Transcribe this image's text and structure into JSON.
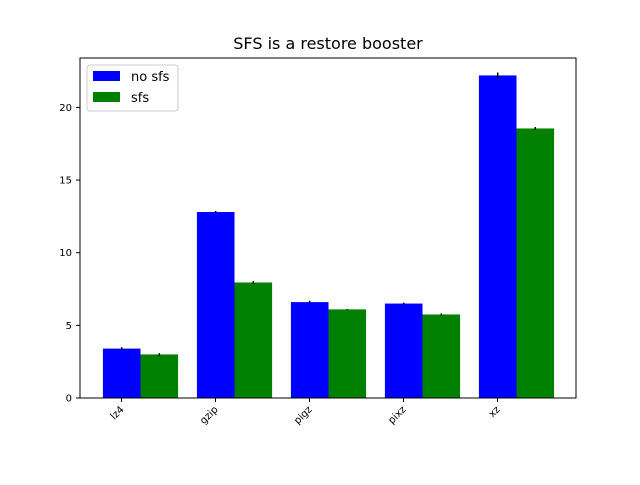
{
  "chart_data": {
    "type": "bar",
    "title": "SFS is a restore booster",
    "xlabel": "",
    "ylabel": "",
    "categories": [
      "lz4",
      "gzip",
      "pigz",
      "pixz",
      "xz"
    ],
    "series": [
      {
        "name": "no sfs",
        "color": "#0000ff",
        "values": [
          3.4,
          12.8,
          6.6,
          6.5,
          22.2
        ],
        "errors": [
          0.1,
          0.07,
          0.1,
          0.07,
          0.2
        ]
      },
      {
        "name": "sfs",
        "color": "#008000",
        "values": [
          3.0,
          7.95,
          6.1,
          5.75,
          18.55
        ],
        "errors": [
          0.08,
          0.1,
          0.03,
          0.07,
          0.1
        ]
      }
    ],
    "ylim": [
      0,
      23.4
    ],
    "yticks": [
      0,
      5,
      10,
      15,
      20
    ],
    "grid": false,
    "legend_position": "top-left"
  }
}
